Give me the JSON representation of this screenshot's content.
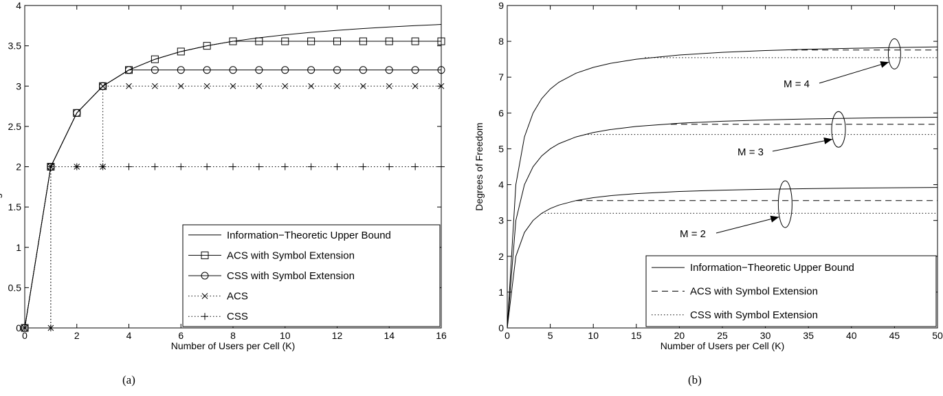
{
  "panel_labels": [
    "(a)",
    "(b)"
  ],
  "chart_data": [
    {
      "type": "line",
      "panel": "(a)",
      "xlabel": "Number of Users per Cell (K)",
      "ylabel": "Degrees of Freedom",
      "xlim": [
        0,
        16
      ],
      "ylim": [
        0,
        4
      ],
      "xticks": [
        0,
        2,
        4,
        6,
        8,
        10,
        12,
        14,
        16
      ],
      "yticks": [
        0,
        0.5,
        1,
        1.5,
        2,
        2.5,
        3,
        3.5,
        4
      ],
      "grid": false,
      "legend_position": "bottom-right",
      "series": [
        {
          "name": "Information−Theoretic Upper Bound",
          "line": "solid",
          "marker": "none",
          "x": [
            0,
            1,
            2,
            3,
            4,
            5,
            6,
            7,
            8,
            9,
            10,
            11,
            12,
            13,
            14,
            15,
            16
          ],
          "values": [
            0,
            2,
            2.667,
            3,
            3.2,
            3.333,
            3.429,
            3.5,
            3.556,
            3.6,
            3.636,
            3.667,
            3.692,
            3.714,
            3.733,
            3.75,
            3.765
          ]
        },
        {
          "name": "ACS with Symbol Extension",
          "line": "solid",
          "marker": "square",
          "x": [
            0,
            1,
            2,
            3,
            4,
            5,
            6,
            7,
            8,
            9,
            10,
            11,
            12,
            13,
            14,
            15,
            16
          ],
          "values": [
            0,
            2,
            2.667,
            3,
            3.2,
            3.333,
            3.429,
            3.5,
            3.556,
            3.556,
            3.556,
            3.556,
            3.556,
            3.556,
            3.556,
            3.556,
            3.556
          ]
        },
        {
          "name": "CSS with Symbol Extension",
          "line": "solid",
          "marker": "circle",
          "x": [
            0,
            1,
            2,
            3,
            4,
            5,
            6,
            7,
            8,
            9,
            10,
            11,
            12,
            13,
            14,
            15,
            16
          ],
          "values": [
            0,
            2,
            2.667,
            3,
            3.2,
            3.2,
            3.2,
            3.2,
            3.2,
            3.2,
            3.2,
            3.2,
            3.2,
            3.2,
            3.2,
            3.2,
            3.2
          ]
        },
        {
          "name": "ACS",
          "line": "dotted",
          "marker": "x",
          "x": [
            0,
            1,
            1,
            2,
            3,
            3,
            4,
            5,
            6,
            7,
            8,
            9,
            10,
            11,
            12,
            13,
            14,
            15,
            16
          ],
          "values": [
            0,
            0,
            2,
            2,
            2,
            3,
            3,
            3,
            3,
            3,
            3,
            3,
            3,
            3,
            3,
            3,
            3,
            3,
            3
          ]
        },
        {
          "name": "CSS",
          "line": "dotted",
          "marker": "plus",
          "x": [
            0,
            1,
            1,
            2,
            3,
            4,
            5,
            6,
            7,
            8,
            9,
            10,
            11,
            12,
            13,
            14,
            15,
            16
          ],
          "values": [
            0,
            0,
            2,
            2,
            2,
            2,
            2,
            2,
            2,
            2,
            2,
            2,
            2,
            2,
            2,
            2,
            2,
            2
          ]
        }
      ]
    },
    {
      "type": "line",
      "panel": "(b)",
      "xlabel": "Number of Users per Cell (K)",
      "ylabel": "Degrees of Freedom",
      "xlim": [
        0,
        50
      ],
      "ylim": [
        0,
        9
      ],
      "xticks": [
        0,
        5,
        10,
        15,
        20,
        25,
        30,
        35,
        40,
        45,
        50
      ],
      "yticks": [
        0,
        1,
        2,
        3,
        4,
        5,
        6,
        7,
        8,
        9
      ],
      "grid": false,
      "legend_position": "bottom-right",
      "legend": [
        {
          "name": "Information−Theoretic Upper Bound",
          "line": "solid"
        },
        {
          "name": "ACS with Symbol Extension",
          "line": "dashed"
        },
        {
          "name": "CSS with Symbol Extension",
          "line": "dotted"
        }
      ],
      "groups": [
        {
          "label": "M = 2",
          "upper_bound": {
            "x": [
              0,
              1,
              2,
              3,
              4,
              5,
              6,
              8,
              10,
              12,
              15,
              20,
              25,
              30,
              35,
              40,
              45,
              50
            ],
            "values": [
              0,
              2,
              2.667,
              3,
              3.2,
              3.333,
              3.429,
              3.556,
              3.636,
              3.692,
              3.75,
              3.81,
              3.846,
              3.871,
              3.889,
              3.902,
              3.913,
              3.922
            ]
          },
          "acs_level": 3.556,
          "acs_from_k": 8,
          "css_level": 3.2,
          "css_from_k": 4
        },
        {
          "label": "M = 3",
          "upper_bound": {
            "x": [
              0,
              1,
              2,
              3,
              4,
              5,
              6,
              8,
              10,
              12,
              15,
              20,
              25,
              30,
              35,
              40,
              45,
              50
            ],
            "values": [
              0,
              3,
              4.0,
              4.5,
              4.8,
              5.0,
              5.143,
              5.333,
              5.455,
              5.538,
              5.625,
              5.714,
              5.769,
              5.806,
              5.833,
              5.854,
              5.87,
              5.882
            ]
          },
          "acs_level": 5.684,
          "acs_from_k": 19,
          "css_level": 5.4,
          "css_from_k": 9
        },
        {
          "label": "M = 4",
          "upper_bound": {
            "x": [
              0,
              1,
              2,
              3,
              4,
              5,
              6,
              8,
              10,
              12,
              15,
              20,
              25,
              30,
              35,
              40,
              45,
              50
            ],
            "values": [
              0,
              4,
              5.333,
              6.0,
              6.4,
              6.667,
              6.857,
              7.111,
              7.273,
              7.385,
              7.5,
              7.619,
              7.692,
              7.742,
              7.778,
              7.805,
              7.826,
              7.843
            ]
          },
          "acs_level": 7.758,
          "acs_from_k": 33,
          "css_level": 7.543,
          "css_from_k": 16
        }
      ]
    }
  ]
}
